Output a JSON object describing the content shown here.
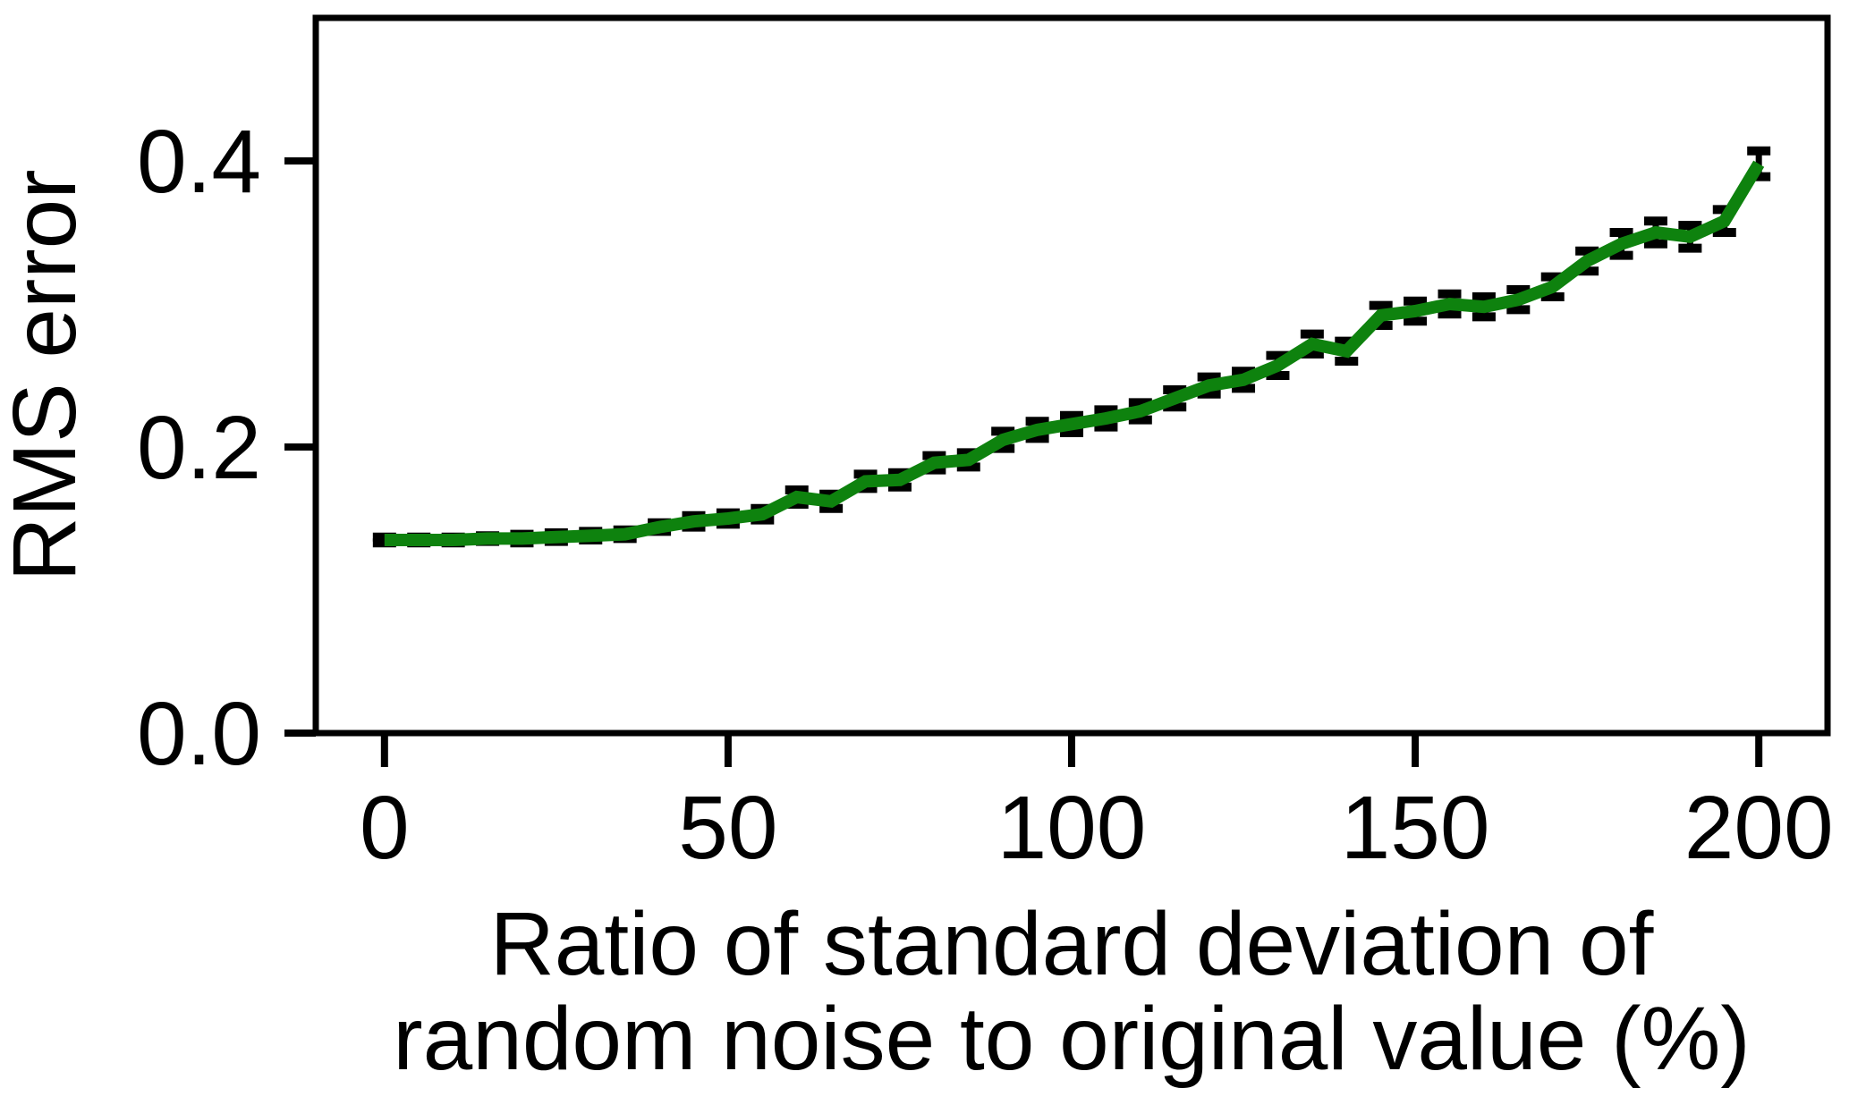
{
  "figure": {
    "background": "#ffffff",
    "axis_color": "#000000",
    "text_color": "#000000"
  },
  "chart_data": {
    "type": "line",
    "title": "",
    "ylabel": "RMS error",
    "xlabel_line1": "Ratio of standard deviation of",
    "xlabel_line2": "random noise to original value (%)",
    "xlim": [
      -10,
      210
    ],
    "ylim": [
      0,
      0.5
    ],
    "xticks": [
      0,
      50,
      100,
      150,
      200
    ],
    "xtick_labels": [
      "0",
      "50",
      "100",
      "150",
      "200"
    ],
    "yticks": [
      0,
      0.2,
      0.4
    ],
    "ytick_labels": [
      "0.0",
      "0.2",
      "0.4"
    ],
    "grid": false,
    "legend": null,
    "line_color": "#0e820e",
    "error_color": "#000000",
    "x": [
      0,
      5,
      10,
      15,
      20,
      25,
      30,
      35,
      40,
      45,
      50,
      55,
      60,
      65,
      70,
      75,
      80,
      85,
      90,
      95,
      100,
      105,
      110,
      115,
      120,
      125,
      130,
      135,
      140,
      145,
      150,
      155,
      160,
      165,
      170,
      175,
      180,
      185,
      190,
      195,
      200
    ],
    "series": [
      {
        "name": "RMS error",
        "values": [
          0.135,
          0.135,
          0.135,
          0.136,
          0.136,
          0.137,
          0.138,
          0.139,
          0.144,
          0.148,
          0.15,
          0.153,
          0.165,
          0.162,
          0.176,
          0.177,
          0.189,
          0.191,
          0.205,
          0.212,
          0.216,
          0.22,
          0.225,
          0.234,
          0.243,
          0.247,
          0.257,
          0.272,
          0.267,
          0.292,
          0.295,
          0.3,
          0.298,
          0.303,
          0.312,
          0.33,
          0.342,
          0.35,
          0.347,
          0.358,
          0.398
        ],
        "errors": [
          0.002,
          0.002,
          0.002,
          0.002,
          0.003,
          0.003,
          0.003,
          0.003,
          0.003,
          0.004,
          0.004,
          0.004,
          0.005,
          0.005,
          0.005,
          0.005,
          0.005,
          0.005,
          0.006,
          0.006,
          0.006,
          0.006,
          0.006,
          0.006,
          0.006,
          0.006,
          0.007,
          0.007,
          0.007,
          0.007,
          0.007,
          0.007,
          0.007,
          0.007,
          0.007,
          0.007,
          0.008,
          0.008,
          0.008,
          0.008,
          0.009
        ]
      }
    ]
  }
}
